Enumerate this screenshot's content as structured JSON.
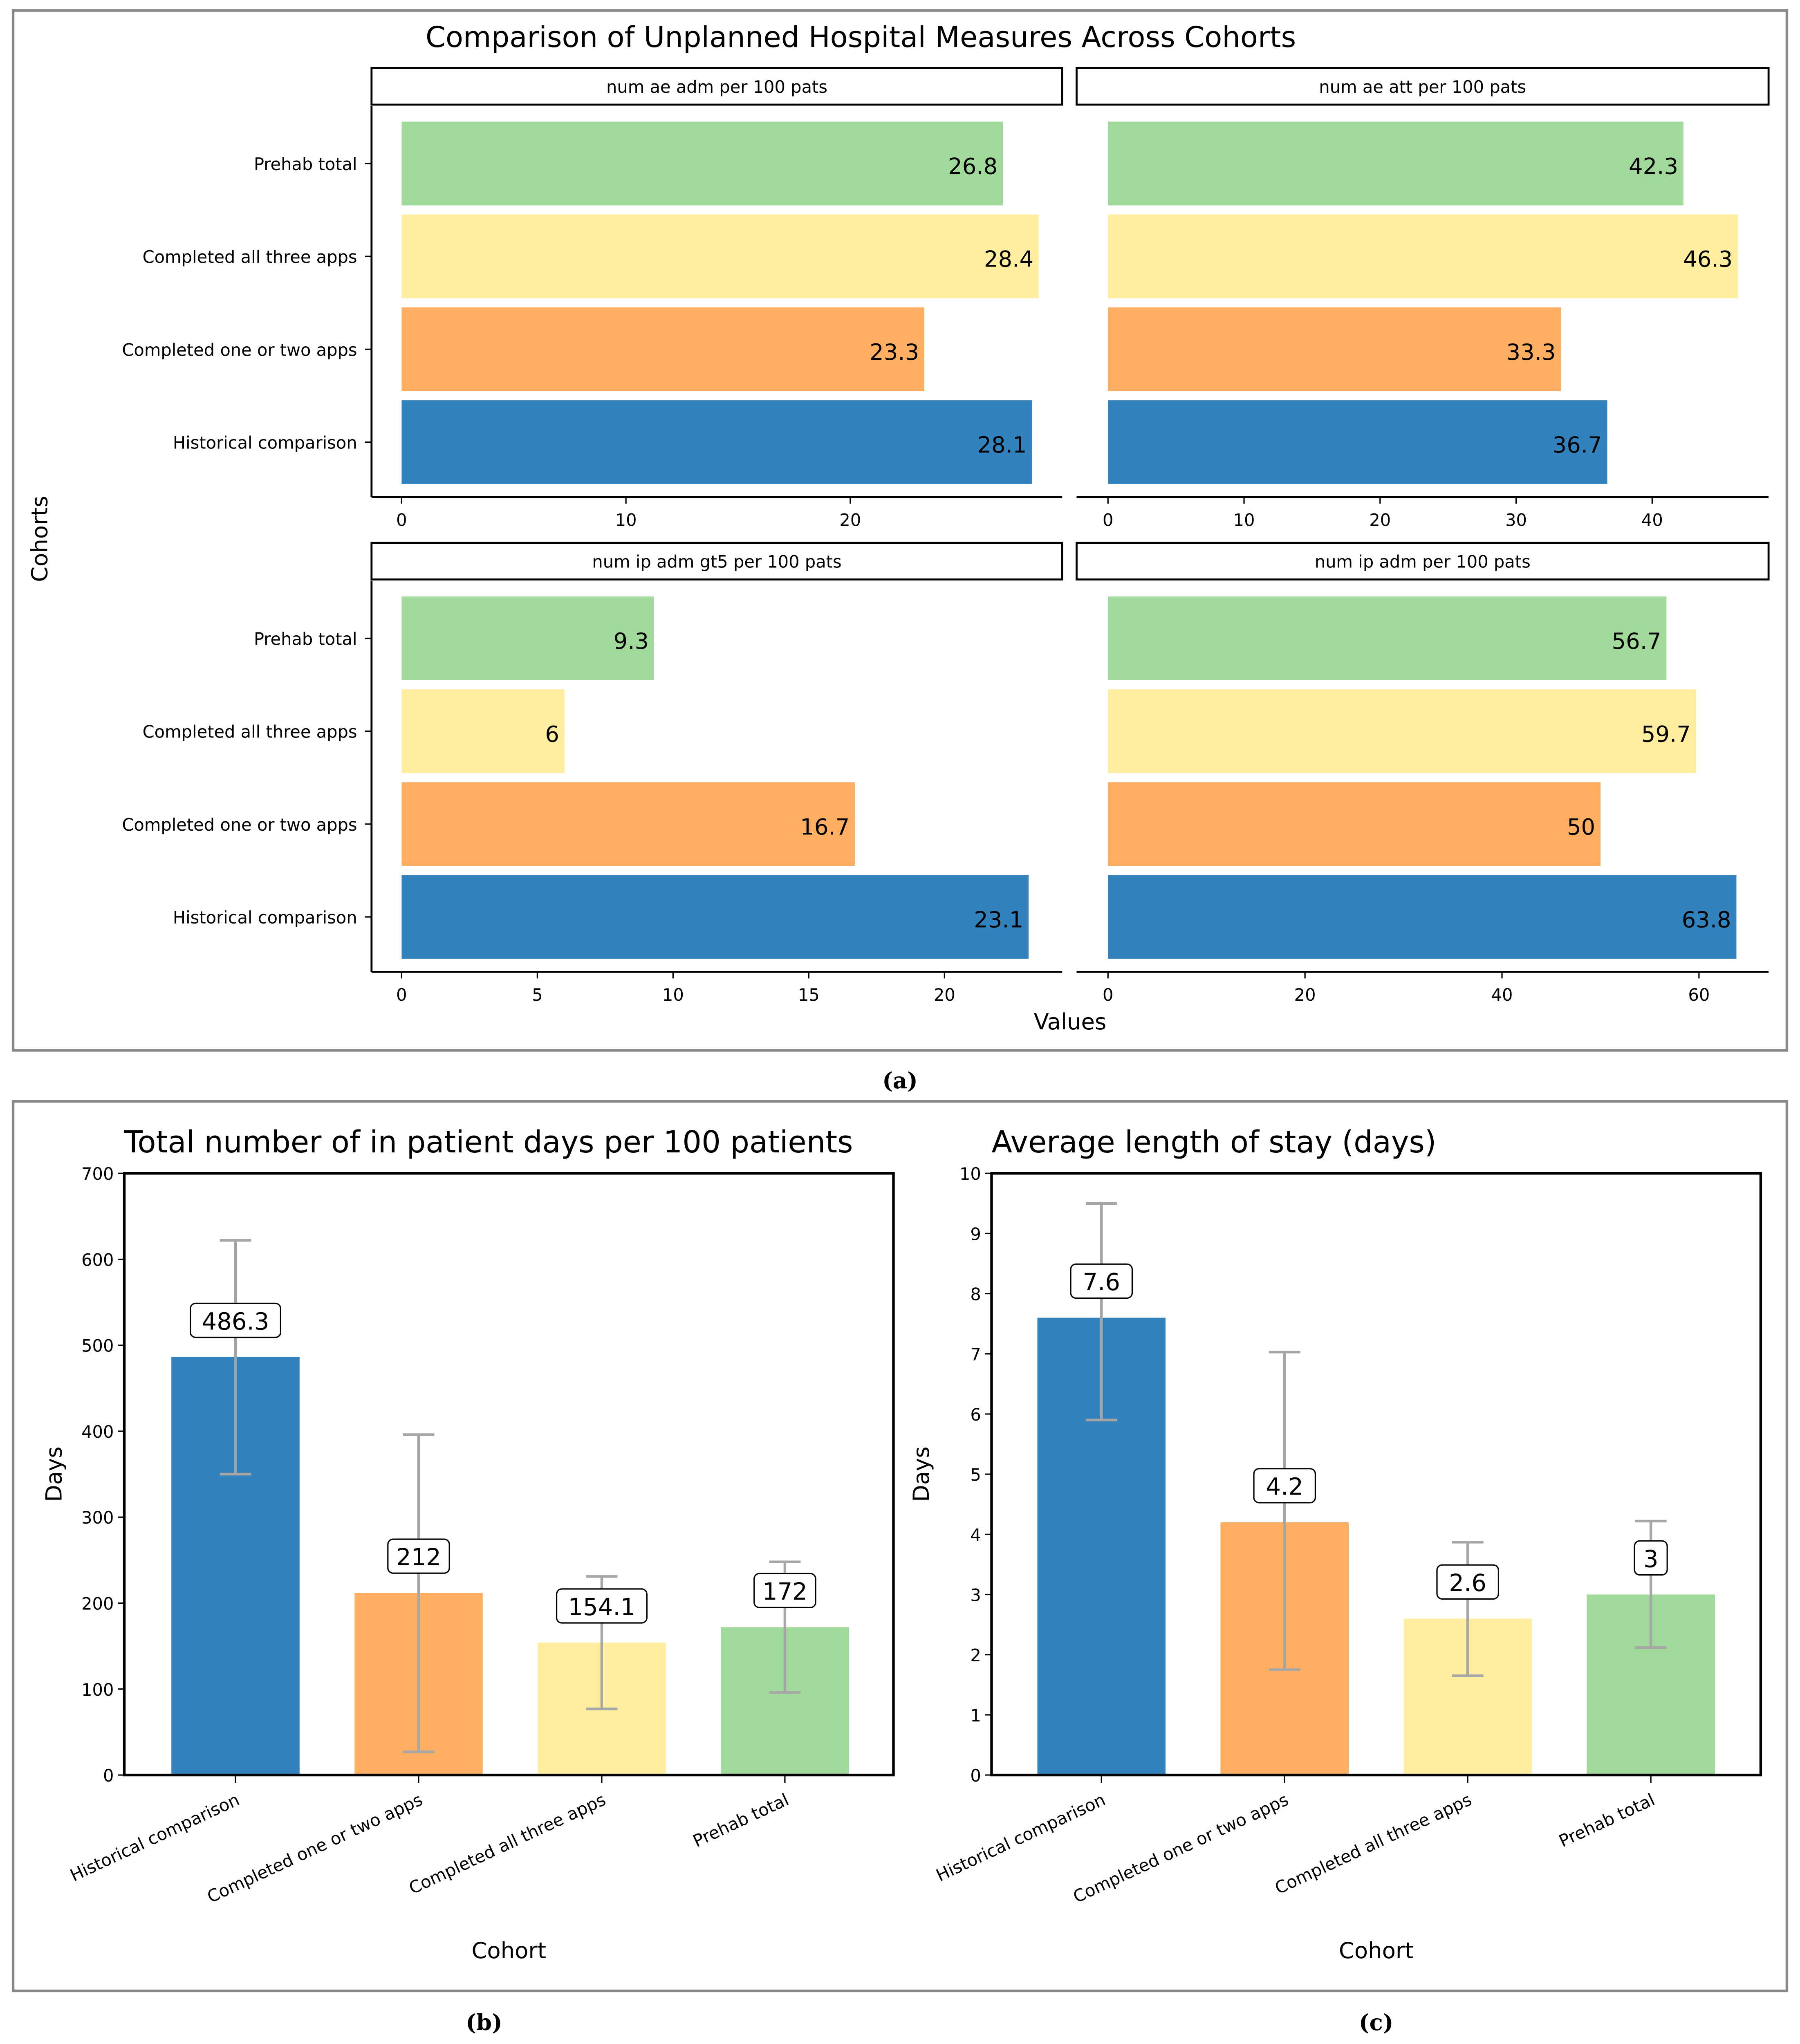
{
  "chart_data": [
    {
      "type": "bar",
      "orientation": "horizontal",
      "panel_caption": "(a)",
      "title": "Comparison of Unplanned Hospital Measures Across Cohorts",
      "xlabel": "Values",
      "ylabel": "Cohorts",
      "categories": [
        "Prehab total",
        "Completed all three apps",
        "Completed one or two apps",
        "Historical comparison"
      ],
      "colors": [
        "#a1d99b",
        "#ffeda0",
        "#fdae61",
        "#3182bd"
      ],
      "facets": [
        {
          "title": "num ae adm per 100 pats",
          "values": [
            26.8,
            28.4,
            23.3,
            28.1
          ],
          "value_labels": [
            "26.8",
            "28.4",
            "23.3",
            "28.1"
          ],
          "xticks": [
            0,
            10,
            20
          ],
          "xlim": [
            0,
            28.4
          ]
        },
        {
          "title": "num ae att per 100 pats",
          "values": [
            42.3,
            46.3,
            33.3,
            36.7
          ],
          "value_labels": [
            "42.3",
            "46.3",
            "33.3",
            "36.7"
          ],
          "xticks": [
            0,
            10,
            20,
            30,
            40
          ],
          "xlim": [
            0,
            46.3
          ]
        },
        {
          "title": "num ip adm gt5 per 100 pats",
          "values": [
            9.3,
            6,
            16.7,
            23.1
          ],
          "value_labels": [
            "9.3",
            "6",
            "16.7",
            "23.1"
          ],
          "xticks": [
            0,
            5,
            10,
            15,
            20
          ],
          "xlim": [
            0,
            23.1
          ]
        },
        {
          "title": "num ip adm per 100 pats",
          "values": [
            56.7,
            59.7,
            50,
            63.8
          ],
          "value_labels": [
            "56.7",
            "59.7",
            "50",
            "63.8"
          ],
          "xticks": [
            0,
            20,
            40,
            60
          ],
          "xlim": [
            0,
            63.8
          ]
        }
      ]
    },
    {
      "type": "bar",
      "panel_caption": "(b)",
      "title": "Total number of in patient days per 100 patients",
      "xlabel": "Cohort",
      "ylabel": "Days",
      "categories": [
        "Historical comparison",
        "Completed one or two apps",
        "Completed all three apps",
        "Prehab total"
      ],
      "colors": [
        "#3182bd",
        "#fdae61",
        "#ffeda0",
        "#a1d99b"
      ],
      "values": [
        486.3,
        212,
        154.1,
        172
      ],
      "value_labels": [
        "486.3",
        "212",
        "154.1",
        "172"
      ],
      "error_low": [
        350,
        27,
        77,
        96
      ],
      "error_high": [
        622,
        396,
        231,
        248
      ],
      "ylim": [
        0,
        700
      ],
      "yticks": [
        0,
        100,
        200,
        300,
        400,
        500,
        600,
        700
      ]
    },
    {
      "type": "bar",
      "panel_caption": "(c)",
      "title": "Average length of stay (days)",
      "xlabel": "Cohort",
      "ylabel": "Days",
      "categories": [
        "Historical comparison",
        "Completed one or two apps",
        "Completed all three apps",
        "Prehab total"
      ],
      "colors": [
        "#3182bd",
        "#fdae61",
        "#ffeda0",
        "#a1d99b"
      ],
      "values": [
        7.6,
        4.2,
        2.6,
        3
      ],
      "value_labels": [
        "7.6",
        "4.2",
        "2.6",
        "3"
      ],
      "error_low": [
        5.9,
        1.75,
        1.65,
        2.12
      ],
      "error_high": [
        9.5,
        7.03,
        3.87,
        4.22
      ],
      "ylim": [
        0,
        10
      ],
      "yticks": [
        0,
        1,
        2,
        3,
        4,
        5,
        6,
        7,
        8,
        9,
        10
      ]
    }
  ]
}
